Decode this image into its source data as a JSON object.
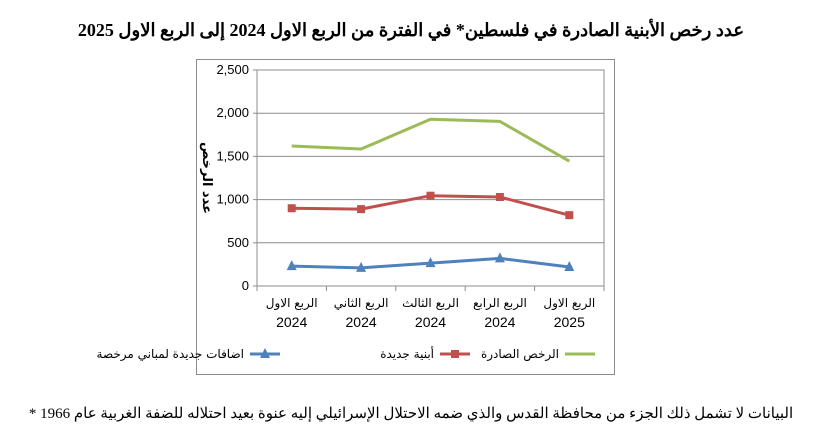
{
  "title": "عدد رخص الأبنية الصادرة في فلسطين* في الفترة من الربع الاول 2024 إلى الربع الاول 2025",
  "footnote": "* البيانات لا تشمل ذلك الجزء من محافظة القدس والذي ضمه الاحتلال الإسرائيلي إليه عنوة بعيد احتلاله للضفة الغربية عام 1966",
  "chart_data": {
    "type": "line",
    "ylabel": "عدد الرخص",
    "xlabel": "",
    "ylim": [
      0,
      2500
    ],
    "yticks": [
      "0",
      "500",
      "1,000",
      "1,500",
      "2,000",
      "2,500"
    ],
    "grid": true,
    "legend_position": "bottom",
    "categories": [
      {
        "quarter": "الربع الاول",
        "year": "2024"
      },
      {
        "quarter": "الربع الثاني",
        "year": "2024"
      },
      {
        "quarter": "الربع الثالث",
        "year": "2024"
      },
      {
        "quarter": "الربع الرابع",
        "year": "2024"
      },
      {
        "quarter": "الربع الاول",
        "year": "2025"
      }
    ],
    "series": [
      {
        "name": "الرخص الصادرة",
        "color": "#9bbb59",
        "marker": "none",
        "values": [
          1620,
          1585,
          1930,
          1905,
          1445
        ]
      },
      {
        "name": "أبنية جديدة",
        "color": "#c0504d",
        "marker": "square",
        "values": [
          900,
          890,
          1045,
          1030,
          820
        ]
      },
      {
        "name": "اضافات جديدة لمباني مرخصة",
        "color": "#4f81bd",
        "marker": "triangle",
        "values": [
          230,
          210,
          265,
          320,
          220
        ]
      }
    ]
  }
}
